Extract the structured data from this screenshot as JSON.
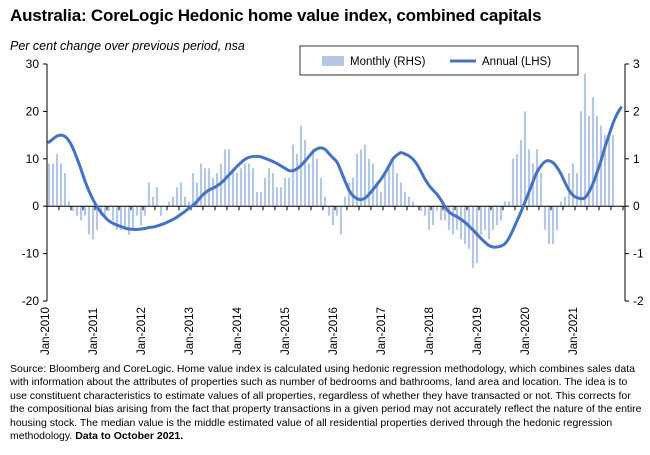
{
  "title": "Australia: CoreLogic Hedonic home value index, combined capitals",
  "subtitle": "Per cent change over previous period, nsa",
  "source_text": "Source: Bloomberg and CoreLogic. Home value index is calculated using hedonic regression methodology, which combines sales data with information about the attributes of properties such as number of bedrooms and bathrooms, land area and location.  The idea is to use constituent characteristics to estimate values of all properties, regardless of whether they have transacted or not.  This corrects for the compositional bias arising from the fact that property transactions in a given period may not accurately reflect the nature of the entire housing stock.  The median value is the middle estimated value of all residential properties derived through the hedonic regression methodology.",
  "source_bold": "Data to October  2021.",
  "colors": {
    "bar": "#b4c8e6",
    "line": "#4472c4",
    "axis": "#000000"
  },
  "chart_data": {
    "type": "bar+line",
    "x_tick_labels": [
      "Jan-2010",
      "Jan-2011",
      "Jan-2012",
      "Jan-2013",
      "Jan-2014",
      "Jan-2015",
      "Jan-2016",
      "Jan-2017",
      "Jan-2018",
      "Jan-2019",
      "Jan-2020",
      "Jan-2021"
    ],
    "x_start": "2010-01",
    "x_end": "2021-10",
    "y_left": {
      "ticks": [
        "-20",
        "-10",
        "0",
        "10",
        "20",
        "30"
      ],
      "lim": [
        -20,
        30
      ]
    },
    "y_right": {
      "ticks": [
        "-2",
        "-1",
        "0",
        "1",
        "2",
        "3"
      ],
      "lim": [
        -2,
        3
      ]
    },
    "legend_position": "top-right",
    "series": [
      {
        "name": "Monthly (RHS)",
        "type": "bar",
        "axis": "right",
        "values": [
          0.9,
          0.9,
          1.1,
          0.9,
          0.7,
          0.1,
          -0.1,
          -0.2,
          -0.3,
          -0.2,
          -0.6,
          -0.7,
          -0.5,
          -0.2,
          -0.2,
          -0.1,
          -0.3,
          -0.5,
          -0.5,
          -0.5,
          -0.6,
          -0.5,
          -0.2,
          -0.4,
          -0.2,
          0.5,
          0.2,
          0.4,
          -0.2,
          0.0,
          0.1,
          0.2,
          0.4,
          0.5,
          0.2,
          0.1,
          0.7,
          0.5,
          0.9,
          0.8,
          0.8,
          0.6,
          0.7,
          0.9,
          1.2,
          1.2,
          0.8,
          0.7,
          0.8,
          0.9,
          0.9,
          0.8,
          0.3,
          0.3,
          0.6,
          0.8,
          0.7,
          0.4,
          0.4,
          0.6,
          0.6,
          1.3,
          1.1,
          1.7,
          1.4,
          0.9,
          1.2,
          1.0,
          0.6,
          0.2,
          -0.2,
          -0.4,
          -0.2,
          -0.6,
          0.2,
          0.5,
          0.6,
          1.1,
          1.2,
          1.3,
          1.0,
          0.9,
          0.5,
          0.3,
          0.7,
          0.8,
          1.0,
          0.7,
          0.5,
          0.3,
          0.2,
          0.1,
          0.0,
          -0.1,
          -0.2,
          -0.5,
          -0.4,
          -0.1,
          -0.3,
          -0.3,
          -0.5,
          -0.6,
          -0.5,
          -0.7,
          -0.8,
          -0.9,
          -1.3,
          -1.2,
          -0.6,
          -0.5,
          -0.7,
          -0.5,
          -0.4,
          -0.3,
          0.1,
          0.1,
          1.0,
          1.1,
          1.4,
          2.0,
          1.2,
          0.9,
          1.2,
          0.7,
          -0.5,
          -0.8,
          -0.8,
          -0.5,
          0.1,
          0.2,
          0.7,
          0.9,
          0.7,
          2.0,
          2.8,
          1.9,
          2.3,
          1.9,
          1.7,
          1.5,
          1.5,
          1.5
        ]
      },
      {
        "name": "Annual (LHS)",
        "type": "line",
        "axis": "left",
        "values": [
          13.5,
          14.2,
          14.8,
          15.0,
          14.7,
          13.8,
          12.2,
          10.1,
          7.8,
          5.3,
          3.2,
          1.4,
          -0.1,
          -1.3,
          -2.3,
          -3.1,
          -3.6,
          -4.0,
          -4.3,
          -4.6,
          -4.8,
          -4.9,
          -4.9,
          -4.8,
          -4.7,
          -4.5,
          -4.4,
          -4.2,
          -3.9,
          -3.6,
          -3.2,
          -2.8,
          -2.3,
          -1.7,
          -1.1,
          -0.4,
          0.2,
          1.0,
          2.0,
          2.8,
          3.4,
          3.8,
          4.3,
          4.9,
          5.7,
          6.6,
          7.5,
          8.4,
          9.2,
          9.9,
          10.3,
          10.5,
          10.5,
          10.4,
          10.1,
          9.8,
          9.4,
          9.0,
          8.5,
          8.0,
          7.5,
          7.5,
          7.9,
          8.6,
          9.5,
          10.5,
          11.5,
          12.1,
          12.3,
          12.0,
          11.1,
          10.2,
          9.3,
          7.4,
          5.3,
          3.4,
          2.2,
          1.6,
          1.4,
          1.7,
          2.5,
          3.5,
          4.6,
          5.7,
          7.0,
          8.5,
          10.0,
          10.8,
          11.3,
          11.0,
          10.6,
          9.9,
          8.8,
          7.3,
          5.7,
          4.4,
          3.4,
          2.5,
          1.3,
          -0.1,
          -1.2,
          -1.8,
          -2.2,
          -2.8,
          -3.4,
          -4.2,
          -5.0,
          -5.9,
          -6.8,
          -7.6,
          -8.3,
          -8.6,
          -8.6,
          -8.4,
          -7.9,
          -6.7,
          -5.0,
          -3.1,
          -1.2,
          0.9,
          3.0,
          5.2,
          7.2,
          8.5,
          9.4,
          9.6,
          9.2,
          8.2,
          6.8,
          5.0,
          3.4,
          2.3,
          1.8,
          1.6,
          1.8,
          3.0,
          4.8,
          7.1,
          9.6,
          12.5,
          15.0,
          17.5,
          19.4,
          20.8
        ]
      }
    ]
  }
}
